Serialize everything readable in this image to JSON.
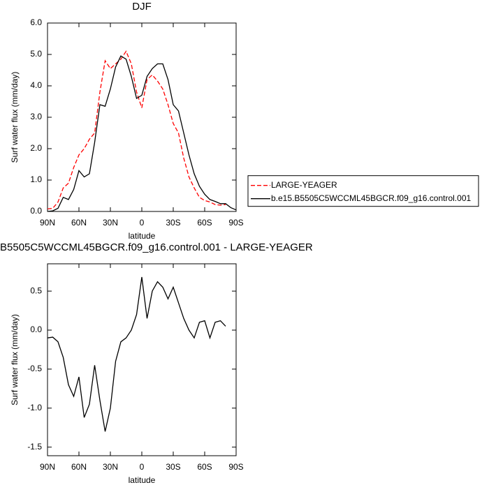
{
  "chart_data": [
    {
      "type": "line",
      "title": "DJF",
      "x_label": "latitude",
      "y_label": "Surf water flux (mm/day)",
      "x": [
        90,
        85,
        80,
        75,
        70,
        65,
        60,
        55,
        50,
        45,
        40,
        35,
        30,
        25,
        20,
        15,
        10,
        5,
        0,
        -5,
        -10,
        -15,
        -20,
        -25,
        -30,
        -35,
        -40,
        -45,
        -50,
        -55,
        -60,
        -65,
        -70,
        -75,
        -80,
        -85,
        -90
      ],
      "series": [
        {
          "name": "LARGE-YEAGER",
          "color": "#ff0000",
          "dashed": true,
          "values": [
            0.08,
            0.1,
            0.3,
            0.75,
            0.9,
            1.4,
            1.8,
            2.0,
            2.3,
            2.5,
            3.8,
            4.8,
            4.55,
            4.7,
            4.85,
            5.1,
            4.7,
            3.8,
            3.3,
            4.2,
            4.35,
            4.15,
            3.9,
            3.4,
            2.8,
            2.5,
            1.7,
            1.1,
            0.75,
            0.45,
            0.35,
            0.3,
            0.22,
            0.2,
            0.22,
            null,
            null
          ]
        },
        {
          "name": "b.e15.B5505C5WCCML45BGCR.f09_g16.control.001",
          "color": "#000000",
          "dashed": false,
          "values": [
            0.0,
            0.02,
            0.1,
            0.45,
            0.38,
            0.7,
            1.3,
            1.1,
            1.2,
            2.2,
            3.4,
            3.35,
            3.9,
            4.6,
            4.95,
            4.85,
            4.3,
            3.6,
            3.7,
            4.3,
            4.55,
            4.7,
            4.7,
            4.2,
            3.4,
            3.2,
            2.5,
            1.8,
            1.2,
            0.8,
            0.55,
            0.38,
            0.32,
            0.25,
            0.25,
            0.12,
            0.05
          ]
        }
      ],
      "xlim": [
        90,
        -90
      ],
      "xticks": [
        {
          "value": 90,
          "label": "90N"
        },
        {
          "value": 60,
          "label": "60N"
        },
        {
          "value": 30,
          "label": "30N"
        },
        0,
        {
          "value": -30,
          "label": "30S"
        },
        {
          "value": -60,
          "label": "60S"
        },
        {
          "value": -90,
          "label": "90S"
        }
      ],
      "ylim": [
        0,
        6
      ],
      "yticks": [
        {
          "value": 0,
          "label": "0.0"
        },
        {
          "value": 1,
          "label": "1.0"
        },
        {
          "value": 2,
          "label": "2.0"
        },
        {
          "value": 3,
          "label": "3.0"
        },
        {
          "value": 4,
          "label": "4.0"
        },
        {
          "value": 5,
          "label": "5.0"
        },
        {
          "value": 6,
          "label": "6.0"
        }
      ],
      "legend": "right"
    },
    {
      "type": "line",
      "title": "b.e15.B5505C5WCCML45BGCR.f09_g16.control.001 - LARGE-YEAGER",
      "x_label": "latitude",
      "y_label": "Surf water flux (mm/day)",
      "x": [
        90,
        85,
        80,
        75,
        70,
        65,
        60,
        55,
        50,
        45,
        40,
        35,
        30,
        25,
        20,
        15,
        10,
        5,
        0,
        -5,
        -10,
        -15,
        -20,
        -25,
        -30,
        -35,
        -40,
        -45,
        -50,
        -55,
        -60,
        -65,
        -70,
        -75,
        -80,
        -85,
        -90
      ],
      "series": [
        {
          "color": "#000000",
          "dashed": false,
          "values": [
            -0.1,
            -0.09,
            -0.15,
            -0.35,
            -0.7,
            -0.85,
            -0.6,
            -1.12,
            -0.95,
            -0.45,
            -0.9,
            -1.3,
            -1.0,
            -0.4,
            -0.15,
            -0.1,
            0.0,
            0.2,
            0.68,
            0.15,
            0.5,
            0.62,
            0.55,
            0.4,
            0.55,
            0.35,
            0.15,
            0.0,
            -0.1,
            0.1,
            0.12,
            -0.1,
            0.1,
            0.12,
            0.05,
            null,
            null
          ]
        }
      ],
      "xlim": [
        90,
        -90
      ],
      "xticks": [
        {
          "value": 90,
          "label": "90N"
        },
        {
          "value": 60,
          "label": "60N"
        },
        {
          "value": 30,
          "label": "30N"
        },
        0,
        {
          "value": -30,
          "label": "30S"
        },
        {
          "value": -60,
          "label": "60S"
        },
        {
          "value": -90,
          "label": "90S"
        }
      ],
      "ylim": [
        -1.61,
        0.85
      ],
      "yticks": [
        {
          "value": -1.5,
          "label": "-1.5"
        },
        {
          "value": -1,
          "label": "-1.0"
        },
        {
          "value": -0.5,
          "label": "-0.5"
        },
        {
          "value": 0,
          "label": "0.0"
        },
        {
          "value": 0.5,
          "label": "0.5"
        }
      ]
    }
  ]
}
